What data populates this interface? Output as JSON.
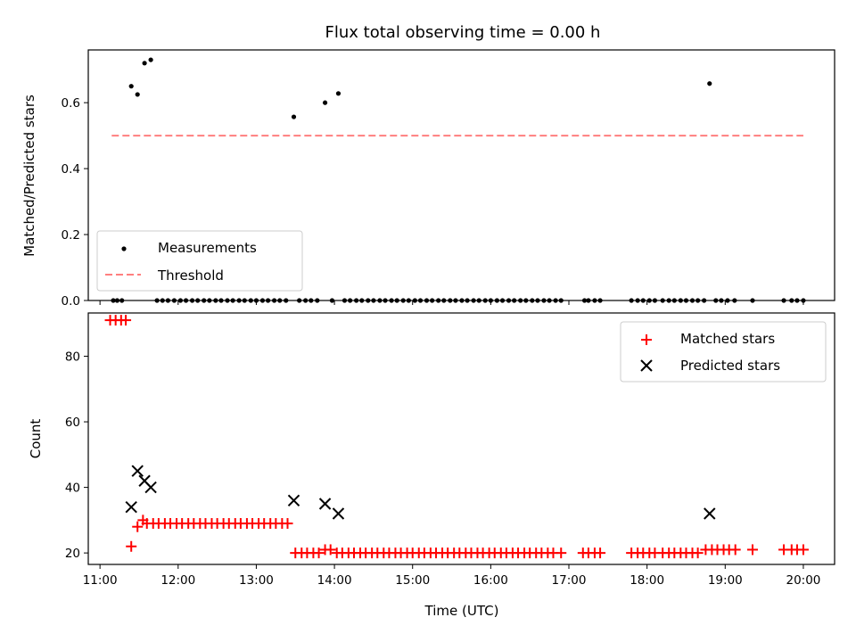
{
  "chart_data": [
    {
      "type": "scatter",
      "title": "Flux total observing time = 0.00 h",
      "ylabel": "Matched/Predicted stars",
      "xlabel": "",
      "ylim": [
        0.0,
        0.76
      ],
      "y_ticks": [
        "0.0",
        "0.2",
        "0.4",
        "0.6"
      ],
      "grid": false,
      "legend": "lower-left",
      "series": [
        {
          "name": "Measurements",
          "marker": "dot",
          "color": "#000000",
          "points": [
            [
              11.17,
              0
            ],
            [
              11.22,
              0
            ],
            [
              11.28,
              0
            ],
            [
              11.4,
              0.65
            ],
            [
              11.48,
              0.625
            ],
            [
              11.57,
              0.72
            ],
            [
              11.65,
              0.73
            ],
            [
              11.73,
              0
            ],
            [
              11.8,
              0
            ],
            [
              11.87,
              0
            ],
            [
              11.95,
              0
            ],
            [
              12.03,
              0
            ],
            [
              12.1,
              0
            ],
            [
              12.18,
              0
            ],
            [
              12.25,
              0
            ],
            [
              12.33,
              0
            ],
            [
              12.4,
              0
            ],
            [
              12.48,
              0
            ],
            [
              12.55,
              0
            ],
            [
              12.63,
              0
            ],
            [
              12.7,
              0
            ],
            [
              12.78,
              0
            ],
            [
              12.85,
              0
            ],
            [
              12.93,
              0
            ],
            [
              13.0,
              0
            ],
            [
              13.08,
              0
            ],
            [
              13.15,
              0
            ],
            [
              13.23,
              0
            ],
            [
              13.3,
              0
            ],
            [
              13.38,
              0
            ],
            [
              13.48,
              0.557
            ],
            [
              13.55,
              0
            ],
            [
              13.63,
              0
            ],
            [
              13.7,
              0
            ],
            [
              13.78,
              0
            ],
            [
              13.88,
              0.6
            ],
            [
              13.97,
              0
            ],
            [
              14.05,
              0.628
            ],
            [
              14.13,
              0
            ],
            [
              14.2,
              0
            ],
            [
              14.28,
              0
            ],
            [
              14.35,
              0
            ],
            [
              14.43,
              0
            ],
            [
              14.5,
              0
            ],
            [
              14.58,
              0
            ],
            [
              14.65,
              0
            ],
            [
              14.73,
              0
            ],
            [
              14.8,
              0
            ],
            [
              14.88,
              0
            ],
            [
              14.95,
              0
            ],
            [
              15.03,
              0
            ],
            [
              15.1,
              0
            ],
            [
              15.18,
              0
            ],
            [
              15.25,
              0
            ],
            [
              15.33,
              0
            ],
            [
              15.4,
              0
            ],
            [
              15.48,
              0
            ],
            [
              15.55,
              0
            ],
            [
              15.63,
              0
            ],
            [
              15.7,
              0
            ],
            [
              15.78,
              0
            ],
            [
              15.85,
              0
            ],
            [
              15.93,
              0
            ],
            [
              16.0,
              0
            ],
            [
              16.08,
              0
            ],
            [
              16.15,
              0
            ],
            [
              16.23,
              0
            ],
            [
              16.3,
              0
            ],
            [
              16.38,
              0
            ],
            [
              16.45,
              0
            ],
            [
              16.53,
              0
            ],
            [
              16.6,
              0
            ],
            [
              16.68,
              0
            ],
            [
              16.75,
              0
            ],
            [
              16.83,
              0
            ],
            [
              16.9,
              0
            ],
            [
              17.2,
              0
            ],
            [
              17.25,
              0
            ],
            [
              17.33,
              0
            ],
            [
              17.4,
              0
            ],
            [
              17.8,
              0
            ],
            [
              17.88,
              0
            ],
            [
              17.95,
              0
            ],
            [
              18.03,
              0
            ],
            [
              18.1,
              0
            ],
            [
              18.2,
              0
            ],
            [
              18.28,
              0
            ],
            [
              18.35,
              0
            ],
            [
              18.43,
              0
            ],
            [
              18.5,
              0
            ],
            [
              18.58,
              0
            ],
            [
              18.65,
              0
            ],
            [
              18.73,
              0
            ],
            [
              18.8,
              0.658
            ],
            [
              18.88,
              0
            ],
            [
              18.95,
              0
            ],
            [
              19.03,
              0
            ],
            [
              19.12,
              0
            ],
            [
              19.35,
              0
            ],
            [
              19.75,
              0
            ],
            [
              19.85,
              0
            ],
            [
              19.92,
              0
            ],
            [
              20.0,
              0
            ]
          ]
        },
        {
          "name": "Threshold",
          "marker": "dashed-line",
          "color": "#ff7f7f",
          "points": [
            [
              11.15,
              0.5
            ],
            [
              20.0,
              0.5
            ]
          ]
        }
      ]
    },
    {
      "type": "scatter",
      "title": "",
      "ylabel": "Count",
      "xlabel": "Time (UTC)",
      "xlim": [
        10.85,
        20.4
      ],
      "ylim": [
        16.5,
        93.2
      ],
      "y_ticks": [
        "20",
        "40",
        "60",
        "80"
      ],
      "x_ticks": [
        "11:00",
        "12:00",
        "13:00",
        "14:00",
        "15:00",
        "16:00",
        "17:00",
        "18:00",
        "19:00",
        "20:00"
      ],
      "x_tick_values": [
        11,
        12,
        13,
        14,
        15,
        16,
        17,
        18,
        19,
        20
      ],
      "grid": false,
      "legend": "upper-right",
      "series": [
        {
          "name": "Matched stars",
          "marker": "plus",
          "color": "#ff0000",
          "points": [
            [
              11.13,
              91
            ],
            [
              11.2,
              91
            ],
            [
              11.27,
              91
            ],
            [
              11.33,
              91
            ],
            [
              11.4,
              22
            ],
            [
              11.48,
              28
            ],
            [
              11.55,
              30
            ],
            [
              11.6,
              29
            ],
            [
              11.68,
              29
            ],
            [
              11.75,
              29
            ],
            [
              11.83,
              29
            ],
            [
              11.9,
              29
            ],
            [
              11.98,
              29
            ],
            [
              12.05,
              29
            ],
            [
              12.13,
              29
            ],
            [
              12.2,
              29
            ],
            [
              12.28,
              29
            ],
            [
              12.35,
              29
            ],
            [
              12.43,
              29
            ],
            [
              12.5,
              29
            ],
            [
              12.58,
              29
            ],
            [
              12.65,
              29
            ],
            [
              12.73,
              29
            ],
            [
              12.8,
              29
            ],
            [
              12.88,
              29
            ],
            [
              12.95,
              29
            ],
            [
              13.03,
              29
            ],
            [
              13.1,
              29
            ],
            [
              13.18,
              29
            ],
            [
              13.25,
              29
            ],
            [
              13.33,
              29
            ],
            [
              13.4,
              29
            ],
            [
              13.5,
              20
            ],
            [
              13.58,
              20
            ],
            [
              13.65,
              20
            ],
            [
              13.73,
              20
            ],
            [
              13.8,
              20
            ],
            [
              13.88,
              21
            ],
            [
              13.95,
              21
            ],
            [
              14.03,
              20
            ],
            [
              14.1,
              20
            ],
            [
              14.18,
              20
            ],
            [
              14.25,
              20
            ],
            [
              14.33,
              20
            ],
            [
              14.4,
              20
            ],
            [
              14.48,
              20
            ],
            [
              14.55,
              20
            ],
            [
              14.63,
              20
            ],
            [
              14.7,
              20
            ],
            [
              14.78,
              20
            ],
            [
              14.85,
              20
            ],
            [
              14.93,
              20
            ],
            [
              15.0,
              20
            ],
            [
              15.08,
              20
            ],
            [
              15.15,
              20
            ],
            [
              15.23,
              20
            ],
            [
              15.3,
              20
            ],
            [
              15.38,
              20
            ],
            [
              15.45,
              20
            ],
            [
              15.53,
              20
            ],
            [
              15.6,
              20
            ],
            [
              15.68,
              20
            ],
            [
              15.75,
              20
            ],
            [
              15.83,
              20
            ],
            [
              15.9,
              20
            ],
            [
              15.98,
              20
            ],
            [
              16.05,
              20
            ],
            [
              16.13,
              20
            ],
            [
              16.2,
              20
            ],
            [
              16.28,
              20
            ],
            [
              16.35,
              20
            ],
            [
              16.43,
              20
            ],
            [
              16.5,
              20
            ],
            [
              16.58,
              20
            ],
            [
              16.65,
              20
            ],
            [
              16.73,
              20
            ],
            [
              16.8,
              20
            ],
            [
              16.9,
              20
            ],
            [
              17.18,
              20
            ],
            [
              17.25,
              20
            ],
            [
              17.33,
              20
            ],
            [
              17.4,
              20
            ],
            [
              17.8,
              20
            ],
            [
              17.88,
              20
            ],
            [
              17.95,
              20
            ],
            [
              18.03,
              20
            ],
            [
              18.1,
              20
            ],
            [
              18.2,
              20
            ],
            [
              18.28,
              20
            ],
            [
              18.35,
              20
            ],
            [
              18.43,
              20
            ],
            [
              18.5,
              20
            ],
            [
              18.58,
              20
            ],
            [
              18.65,
              20
            ],
            [
              18.75,
              21
            ],
            [
              18.83,
              21
            ],
            [
              18.9,
              21
            ],
            [
              18.98,
              21
            ],
            [
              19.05,
              21
            ],
            [
              19.13,
              21
            ],
            [
              19.35,
              21
            ],
            [
              19.75,
              21
            ],
            [
              19.85,
              21
            ],
            [
              19.92,
              21
            ],
            [
              20.0,
              21
            ]
          ]
        },
        {
          "name": "Predicted stars",
          "marker": "cross",
          "color": "#000000",
          "points": [
            [
              11.4,
              34
            ],
            [
              11.48,
              45
            ],
            [
              11.57,
              42
            ],
            [
              11.65,
              40
            ],
            [
              13.48,
              36
            ],
            [
              13.88,
              35
            ],
            [
              14.05,
              32
            ],
            [
              18.8,
              32
            ]
          ]
        }
      ]
    }
  ]
}
